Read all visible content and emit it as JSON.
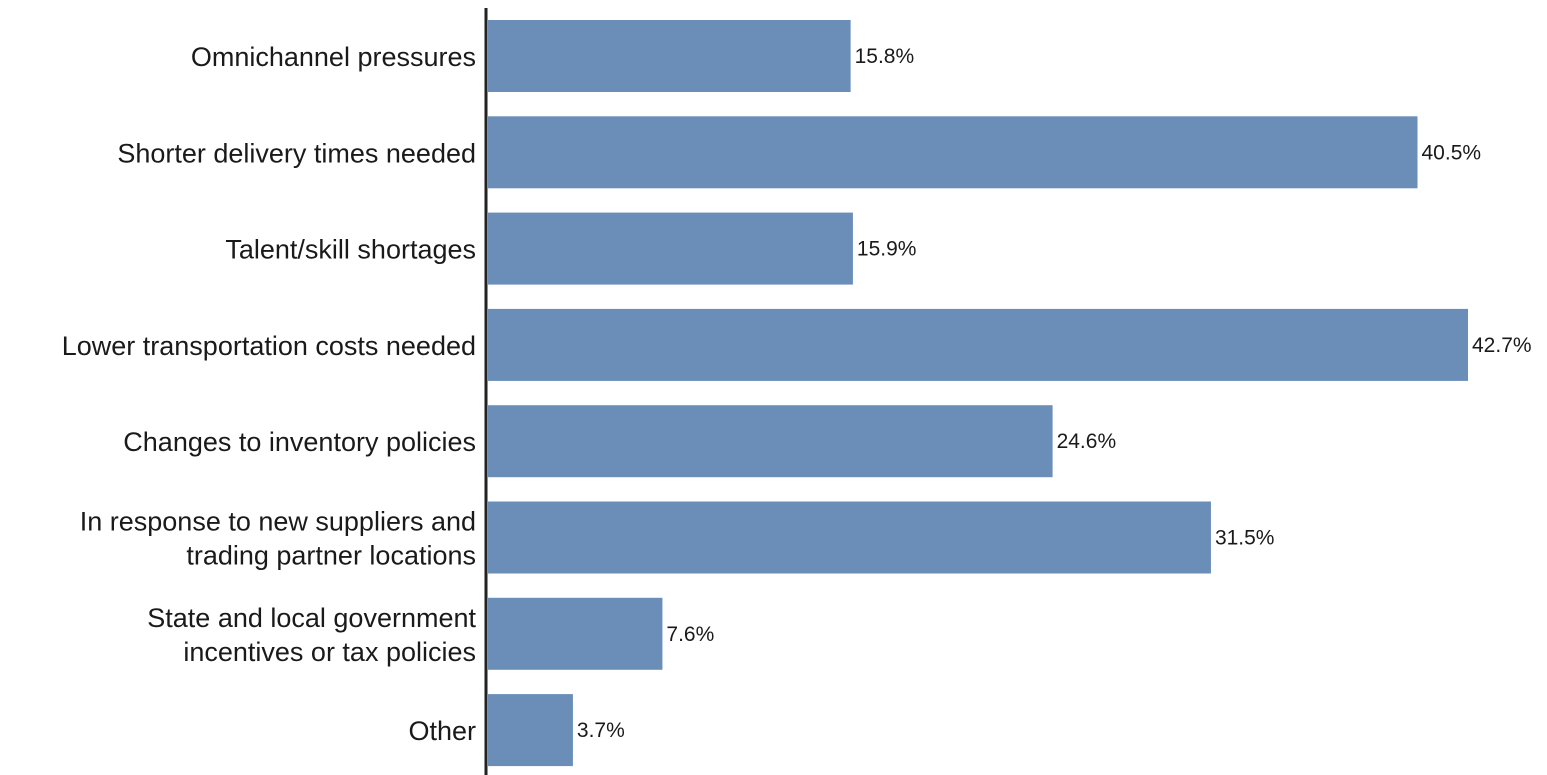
{
  "chart_data": {
    "type": "bar",
    "orientation": "horizontal",
    "title": "",
    "xlabel": "",
    "ylabel": "",
    "bar_color": "#6a8eb8",
    "grid": false,
    "legend": "none",
    "xlim": [
      0,
      43
    ],
    "value_suffix": "%",
    "categories": [
      [
        "Omnichannel pressures"
      ],
      [
        "Shorter delivery times needed"
      ],
      [
        "Talent/skill shortages"
      ],
      [
        "Lower transportation costs needed"
      ],
      [
        "Changes to inventory policies"
      ],
      [
        "In response to new suppliers and",
        "trading partner locations"
      ],
      [
        "State and local government",
        "incentives or tax policies"
      ],
      [
        "Other"
      ]
    ],
    "values": [
      15.8,
      40.5,
      15.9,
      42.7,
      24.6,
      31.5,
      7.6,
      3.7
    ],
    "value_labels": [
      "15.8%",
      "40.5%",
      "15.9%",
      "42.7%",
      "24.6%",
      "31.5%",
      "7.6%",
      "3.7%"
    ]
  }
}
